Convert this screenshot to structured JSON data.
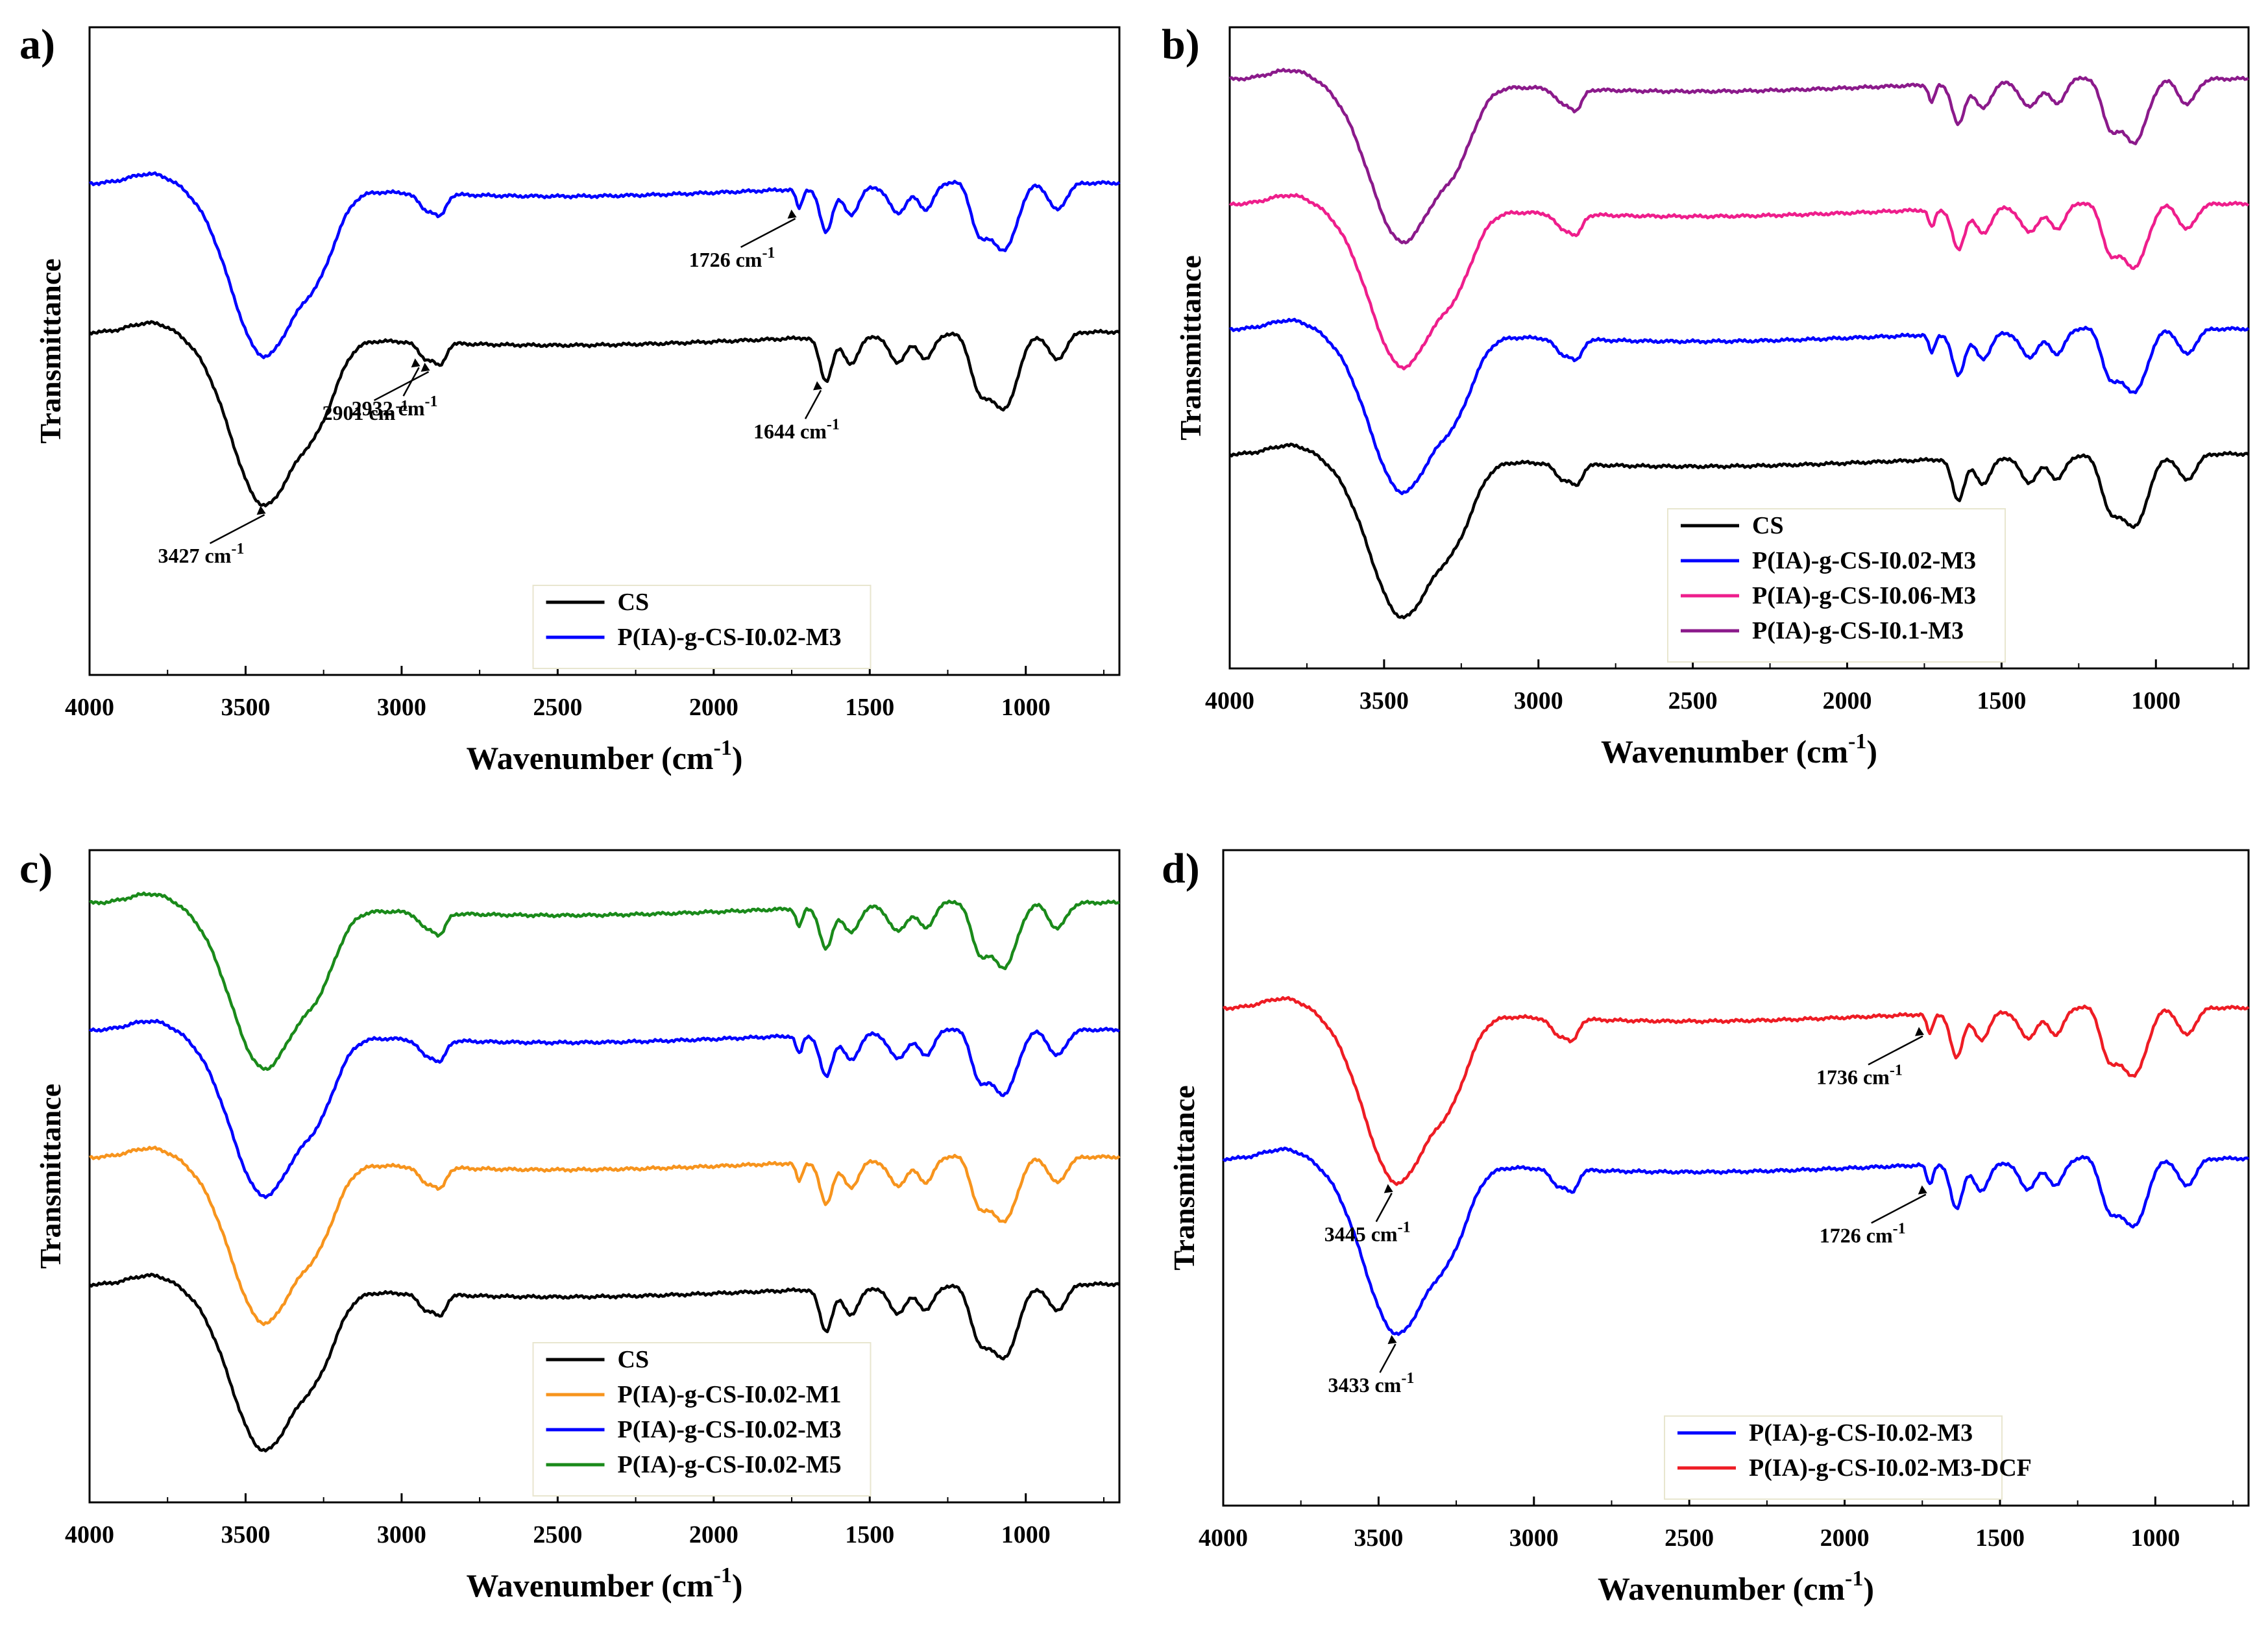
{
  "figure": {
    "panels": [
      "a)",
      "b)",
      "c)",
      "d)"
    ]
  },
  "colors": {
    "black": "#000000",
    "blue": "#0000ff",
    "magenta": "#ee1e8c",
    "purple": "#8b1a8b",
    "orange": "#f7941d",
    "green": "#1a8a1a",
    "red": "#ee1c24"
  },
  "chart_data": [
    {
      "type": "line",
      "panel": "a)",
      "title": "",
      "xlabel": "Wavenumber (cm",
      "xlabel_sup": "-1",
      "xlabel_end": ")",
      "ylabel": "Transmittance",
      "xlim": [
        4000,
        700
      ],
      "xticks": [
        4000,
        3500,
        3000,
        2500,
        2000,
        1500,
        1000
      ],
      "series": [
        {
          "name": "CS",
          "color": "black",
          "offset": 0
        },
        {
          "name": "P(IA)-g-CS-I0.02-M3",
          "color": "blue",
          "offset": 1
        }
      ],
      "legend": [
        "CS",
        "P(IA)-g-CS-I0.02-M3"
      ],
      "annotations": [
        {
          "text": "1726 cm",
          "sup": "-1",
          "x": 1726,
          "series": 1
        },
        {
          "text": "2932 cm",
          "sup": "-1",
          "x": 2932,
          "series": 0
        },
        {
          "text": "2901 cm",
          "sup": "-1",
          "x": 2901,
          "series": 0
        },
        {
          "text": "1644 cm",
          "sup": "-1",
          "x": 1644,
          "series": 0
        },
        {
          "text": "3427 cm",
          "sup": "-1",
          "x": 3427,
          "series": 0
        }
      ]
    },
    {
      "type": "line",
      "panel": "b)",
      "title": "",
      "xlabel": "Wavenumber (cm",
      "xlabel_sup": "-1",
      "xlabel_end": ")",
      "ylabel": "Transmittance",
      "xlim": [
        4000,
        700
      ],
      "xticks": [
        4000,
        3500,
        3000,
        2500,
        2000,
        1500,
        1000
      ],
      "series": [
        {
          "name": "CS",
          "color": "black",
          "offset": 0
        },
        {
          "name": "P(IA)-g-CS-I0.02-M3",
          "color": "blue",
          "offset": 1
        },
        {
          "name": "P(IA)-g-CS-I0.06-M3",
          "color": "magenta",
          "offset": 2
        },
        {
          "name": "P(IA)-g-CS-I0.1-M3",
          "color": "purple",
          "offset": 3
        }
      ],
      "legend": [
        "CS",
        "P(IA)-g-CS-I0.02-M3",
        "P(IA)-g-CS-I0.06-M3",
        "P(IA)-g-CS-I0.1-M3"
      ],
      "annotations": []
    },
    {
      "type": "line",
      "panel": "c)",
      "title": "",
      "xlabel": "Wavenumber (cm",
      "xlabel_sup": "-1",
      "xlabel_end": ")",
      "ylabel": "Transmittance",
      "xlim": [
        4000,
        700
      ],
      "xticks": [
        4000,
        3500,
        3000,
        2500,
        2000,
        1500,
        1000
      ],
      "series": [
        {
          "name": "CS",
          "color": "black",
          "offset": 0
        },
        {
          "name": "P(IA)-g-CS-I0.02-M1",
          "color": "orange",
          "offset": 1
        },
        {
          "name": "P(IA)-g-CS-I0.02-M3",
          "color": "blue",
          "offset": 2
        },
        {
          "name": "P(IA)-g-CS-I0.02-M5",
          "color": "green",
          "offset": 3
        }
      ],
      "legend": [
        "CS",
        "P(IA)-g-CS-I0.02-M1",
        "P(IA)-g-CS-I0.02-M3",
        "P(IA)-g-CS-I0.02-M5"
      ],
      "annotations": []
    },
    {
      "type": "line",
      "panel": "d)",
      "title": "",
      "xlabel": "Wavenumber (cm",
      "xlabel_sup": "-1",
      "xlabel_end": ")",
      "ylabel": "Transmittance",
      "xlim": [
        4000,
        700
      ],
      "xticks": [
        4000,
        3500,
        3000,
        2500,
        2000,
        1500,
        1000
      ],
      "series": [
        {
          "name": "P(IA)-g-CS-I0.02-M3",
          "color": "blue",
          "offset": 0
        },
        {
          "name": "P(IA)-g-CS-I0.02-M3-DCF",
          "color": "red",
          "offset": 1
        }
      ],
      "legend": [
        "P(IA)-g-CS-I0.02-M3",
        "P(IA)-g-CS-I0.02-M3-DCF"
      ],
      "annotations": [
        {
          "text": "1736 cm",
          "sup": "-1",
          "x": 1736,
          "series": 1
        },
        {
          "text": "3445 cm",
          "sup": "-1",
          "x": 3445,
          "series": 1
        },
        {
          "text": "1726 cm",
          "sup": "-1",
          "x": 1726,
          "series": 0
        },
        {
          "text": "3433 cm",
          "sup": "-1",
          "x": 3433,
          "series": 0
        }
      ]
    }
  ]
}
